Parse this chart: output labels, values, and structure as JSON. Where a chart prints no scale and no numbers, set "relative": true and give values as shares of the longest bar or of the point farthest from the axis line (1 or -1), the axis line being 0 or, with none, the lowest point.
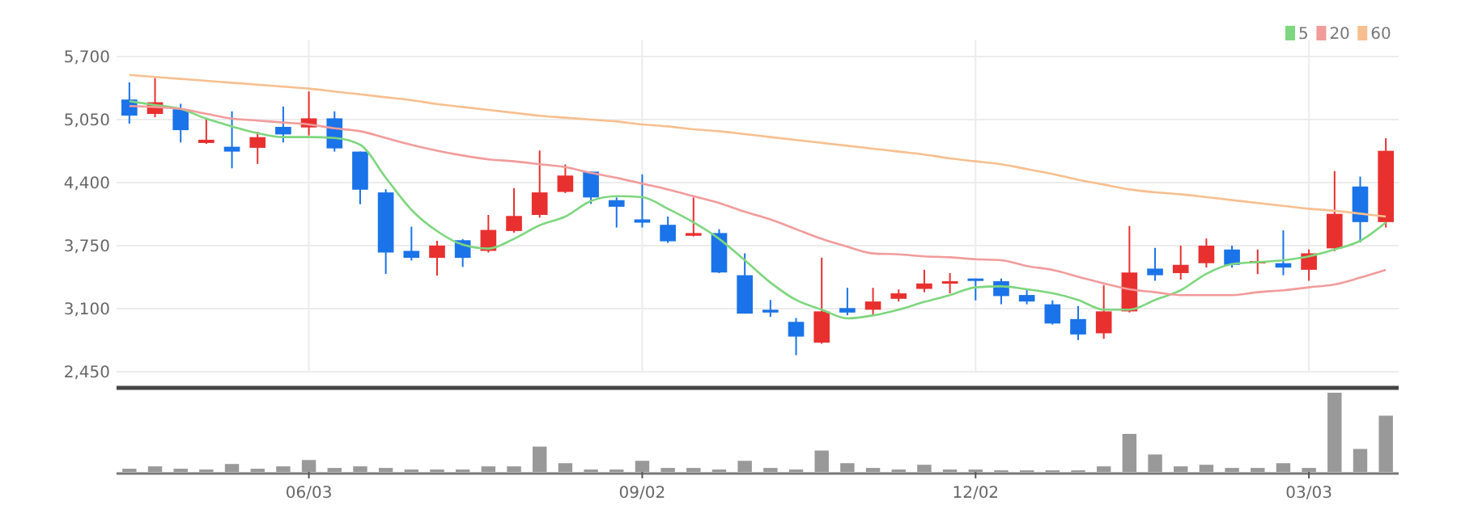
{
  "chart_data": [
    {
      "type": "candlestick",
      "categories": [
        null,
        null,
        null,
        null,
        null,
        null,
        null,
        null,
        null,
        null,
        null,
        null,
        null,
        null,
        null,
        null,
        null,
        null,
        null,
        null,
        null,
        null,
        null,
        null,
        null,
        null,
        null,
        null,
        null,
        null,
        null,
        null,
        null,
        null,
        null,
        null,
        null,
        null,
        null,
        null,
        null,
        null,
        null,
        null,
        null,
        null,
        null,
        null,
        null,
        null
      ],
      "ohlc": [
        [
          5257,
          5434,
          5008,
          5091
        ],
        [
          5108,
          5479,
          5074,
          5229
        ],
        [
          5157,
          5213,
          4814,
          4941
        ],
        [
          4809,
          5063,
          4800,
          4842
        ],
        [
          4770,
          5135,
          4548,
          4720
        ],
        [
          4759,
          4925,
          4593,
          4869
        ],
        [
          4975,
          5185,
          4814,
          4897
        ],
        [
          4969,
          5340,
          4886,
          5063
        ],
        [
          5063,
          5135,
          4720,
          4753
        ],
        [
          4720,
          4720,
          4177,
          4327
        ],
        [
          4299,
          4332,
          3458,
          3679
        ],
        [
          3696,
          3945,
          3596,
          3624
        ],
        [
          3624,
          3801,
          3441,
          3751
        ],
        [
          3806,
          3817,
          3530,
          3624
        ],
        [
          3696,
          4067,
          3679,
          3912
        ],
        [
          3901,
          4343,
          3884,
          4056
        ],
        [
          4067,
          4731,
          4039,
          4299
        ],
        [
          4304,
          4587,
          4293,
          4473
        ],
        [
          4513,
          4513,
          4180,
          4247
        ],
        [
          4219,
          4247,
          3937,
          4151
        ],
        [
          4021,
          4485,
          3937,
          3987
        ],
        [
          3965,
          4050,
          3778,
          3795
        ],
        [
          3852,
          4247,
          3845,
          3880
        ],
        [
          3880,
          3920,
          3467,
          3473
        ],
        [
          3445,
          3671,
          3049,
          3049
        ],
        [
          3089,
          3190,
          3015,
          3060
        ],
        [
          2964,
          3004,
          2620,
          2812
        ],
        [
          2750,
          3626,
          2738,
          3072
        ],
        [
          3106,
          3315,
          3032,
          3060
        ],
        [
          3089,
          3315,
          3032,
          3174
        ],
        [
          3202,
          3298,
          3174,
          3258
        ],
        [
          3304,
          3501,
          3270,
          3360
        ],
        [
          3366,
          3467,
          3258,
          3383
        ],
        [
          3411,
          3411,
          3185,
          3388
        ],
        [
          3383,
          3411,
          3145,
          3230
        ],
        [
          3241,
          3298,
          3145,
          3174
        ],
        [
          3145,
          3185,
          2936,
          2947
        ],
        [
          2993,
          3128,
          2778,
          2834
        ],
        [
          2846,
          3343,
          2789,
          3072
        ],
        [
          3072,
          3953,
          3061,
          3473
        ],
        [
          3513,
          3727,
          3388,
          3445
        ],
        [
          3467,
          3750,
          3400,
          3552
        ],
        [
          3569,
          3823,
          3524,
          3750
        ],
        [
          3710,
          3750,
          3524,
          3552
        ],
        [
          3569,
          3710,
          3456,
          3592
        ],
        [
          3569,
          3908,
          3445,
          3524
        ],
        [
          3501,
          3710,
          3388,
          3671
        ],
        [
          3722,
          4519,
          3693,
          4078
        ],
        [
          4360,
          4462,
          3784,
          3993
        ],
        [
          3993,
          4858,
          3937,
          4728
        ]
      ],
      "series": [
        {
          "name": "5",
          "type": "line",
          "color": "#7ed67e",
          "values": [
            5240,
            5200,
            5160,
            5060,
            4980,
            4910,
            4870,
            4870,
            4860,
            4790,
            4450,
            4120,
            3900,
            3760,
            3720,
            3820,
            3960,
            4050,
            4210,
            4260,
            4250,
            4130,
            3990,
            3820,
            3600,
            3370,
            3190,
            3090,
            3000,
            3030,
            3090,
            3170,
            3240,
            3320,
            3330,
            3300,
            3260,
            3190,
            3090,
            3090,
            3190,
            3290,
            3460,
            3560,
            3580,
            3600,
            3640,
            3710,
            3800,
            3990
          ]
        },
        {
          "name": "20",
          "type": "line",
          "color": "#f29b9b",
          "values": [
            5190,
            5180,
            5160,
            5110,
            5060,
            5040,
            5020,
            5000,
            4960,
            4930,
            4860,
            4790,
            4730,
            4680,
            4640,
            4620,
            4590,
            4560,
            4500,
            4450,
            4390,
            4330,
            4260,
            4190,
            4100,
            4020,
            3920,
            3820,
            3740,
            3670,
            3660,
            3640,
            3630,
            3610,
            3600,
            3540,
            3500,
            3430,
            3360,
            3300,
            3270,
            3240,
            3240,
            3240,
            3270,
            3290,
            3320,
            3350,
            3420,
            3500
          ]
        },
        {
          "name": "60",
          "type": "line",
          "color": "#f7bf8f",
          "values": [
            5510,
            5490,
            5470,
            5450,
            5430,
            5410,
            5390,
            5370,
            5340,
            5310,
            5280,
            5250,
            5210,
            5180,
            5150,
            5120,
            5090,
            5070,
            5050,
            5030,
            5000,
            4980,
            4950,
            4930,
            4900,
            4870,
            4840,
            4810,
            4780,
            4750,
            4720,
            4690,
            4650,
            4620,
            4590,
            4540,
            4490,
            4430,
            4380,
            4330,
            4300,
            4280,
            4250,
            4220,
            4190,
            4160,
            4130,
            4110,
            4080,
            4050
          ]
        }
      ],
      "ylim": [
        2450,
        5700
      ],
      "yticks": [
        {
          "value": 2450,
          "label": "2,450"
        },
        {
          "value": 3100,
          "label": "3,100"
        },
        {
          "value": 3750,
          "label": "3,750"
        },
        {
          "value": 4400,
          "label": "4,400"
        },
        {
          "value": 5050,
          "label": "5,050"
        },
        {
          "value": 5700,
          "label": "5,700"
        }
      ],
      "grid": true,
      "legend": "top right",
      "tick_labels": "y"
    },
    {
      "type": "bar",
      "relative": true,
      "color": "#999999",
      "tick_labels": "x",
      "categories": [
        null,
        null,
        null,
        null,
        null,
        null,
        null,
        "06/03",
        null,
        null,
        null,
        null,
        null,
        null,
        null,
        null,
        null,
        null,
        null,
        null,
        "09/02",
        null,
        null,
        null,
        null,
        null,
        null,
        null,
        null,
        null,
        null,
        null,
        null,
        "12/02",
        null,
        null,
        null,
        null,
        null,
        null,
        null,
        null,
        null,
        null,
        null,
        null,
        "03/03",
        null,
        null,
        null
      ],
      "values": [
        0.04,
        0.07,
        0.04,
        0.03,
        0.1,
        0.04,
        0.07,
        0.15,
        0.05,
        0.07,
        0.05,
        0.03,
        0.03,
        0.03,
        0.07,
        0.07,
        0.32,
        0.11,
        0.03,
        0.03,
        0.14,
        0.05,
        0.05,
        0.03,
        0.14,
        0.05,
        0.03,
        0.27,
        0.11,
        0.05,
        0.03,
        0.09,
        0.03,
        0.03,
        0.02,
        0.02,
        0.02,
        0.02,
        0.07,
        0.48,
        0.22,
        0.07,
        0.09,
        0.05,
        0.05,
        0.11,
        0.05,
        1,
        0.29,
        0.71
      ]
    }
  ]
}
